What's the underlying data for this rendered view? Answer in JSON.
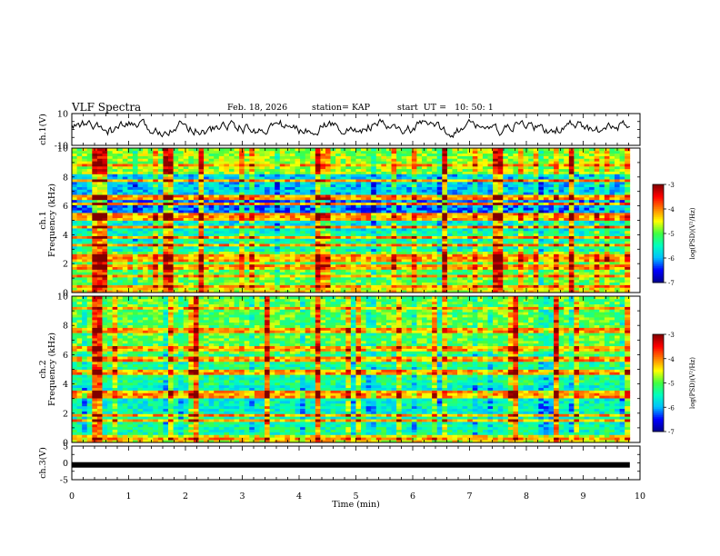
{
  "header": {
    "title": "VLF Spectra",
    "date": "Feb. 18, 2026",
    "station": "station= KAP",
    "start": "start  UT =   10: 50: 1"
  },
  "chart_data": {
    "type": "heatmap",
    "title": "VLF Spectra",
    "xlabel": "Time (min)",
    "xlim": [
      0,
      10
    ],
    "x_ticks": [
      "0",
      "1",
      "2",
      "3",
      "4",
      "5",
      "6",
      "7",
      "8",
      "9",
      "10"
    ],
    "panels": [
      {
        "id": "ch1-waveform",
        "kind": "line",
        "ylabel": "ch.1(V)",
        "ylim": [
          -10,
          10
        ],
        "y_ticks": [
          "10",
          "-10"
        ],
        "data_extent_min": 9.82,
        "approx_range": [
          -4,
          6
        ]
      },
      {
        "id": "ch1-spectrogram",
        "kind": "heatmap",
        "ylabel_line1": "ch.1",
        "ylabel_line2": "Frequency (kHz)",
        "ylim": [
          0,
          10
        ],
        "y_ticks": [
          "0",
          "2",
          "4",
          "6",
          "8",
          "10"
        ],
        "colorbar": {
          "label": "log(PSD)(V²/Hz)",
          "range": [
            -7,
            -3
          ],
          "ticks": [
            "-3",
            "-4",
            "-5",
            "-6",
            "-7"
          ]
        },
        "horizontal_bands_khz": [
          0.5,
          1.2,
          1.8,
          2.3,
          2.6,
          3.3,
          3.8,
          4.6,
          5.2,
          5.5,
          6.2,
          6.6,
          7.8,
          8.8
        ],
        "high_power_columns_min": [
          0.45,
          0.55,
          1.7,
          2.25,
          4.35,
          6.5,
          6.55,
          7.5,
          8.8
        ]
      },
      {
        "id": "ch2-spectrogram",
        "kind": "heatmap",
        "ylabel_line1": "ch.2",
        "ylabel_line2": "Frequency (kHz)",
        "ylim": [
          0,
          10
        ],
        "y_ticks": [
          "0",
          "2",
          "4",
          "6",
          "8",
          "10"
        ],
        "colorbar": {
          "label": "log(PSD)(V²/Hz)",
          "range": [
            -7,
            -3
          ],
          "ticks": [
            "-3",
            "-4",
            "-5",
            "-6",
            "-7"
          ]
        },
        "horizontal_bands_khz": [
          0.3,
          1.5,
          1.9,
          3.2,
          3.5,
          4.8,
          5.7,
          6.4,
          7.7,
          9.2
        ],
        "high_power_columns_min": [
          0.45,
          2.2,
          3.45,
          4.35,
          6.5,
          7.8,
          8.5
        ]
      },
      {
        "id": "ch3-waveform",
        "kind": "line",
        "ylabel": "ch.3(V)",
        "ylim": [
          -5,
          5
        ],
        "y_ticks": [
          "5",
          "0",
          "-5"
        ],
        "data_extent_min": 9.82,
        "approx_value": -0.6
      }
    ]
  },
  "colors": {
    "jet": [
      "#00008f",
      "#0000ff",
      "#00bfff",
      "#00ffbf",
      "#40ff40",
      "#ffff00",
      "#ff8000",
      "#ff0000",
      "#800000"
    ]
  }
}
